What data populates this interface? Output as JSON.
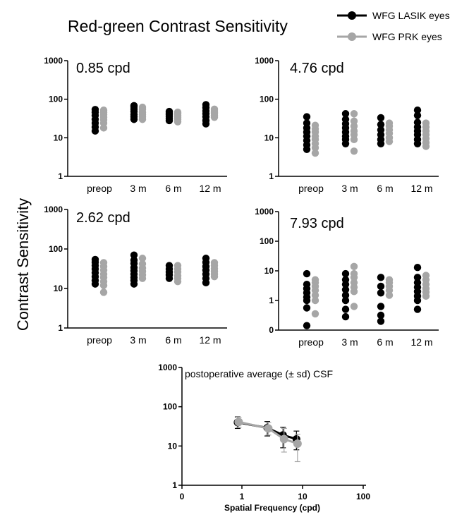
{
  "figure": {
    "title": "Red-green Contrast Sensitivity",
    "y_label": "Contrast Sensitivity"
  },
  "legend": [
    {
      "label": "WFG LASIK eyes",
      "color": "#000000"
    },
    {
      "label": "WFG PRK eyes",
      "color": "#a6a6a6"
    }
  ],
  "colors": {
    "lasik": "#000000",
    "prk": "#a6a6a6",
    "axis": "#000000"
  },
  "chart_data": [
    {
      "type": "scatter",
      "title": "0.85 cpd",
      "categories": [
        "preop",
        "3 m",
        "6 m",
        "12 m"
      ],
      "y_scale": "log",
      "ylim": [
        1,
        1000
      ],
      "y_ticks": [
        "1",
        "10",
        "100",
        "1000"
      ],
      "series": [
        {
          "name": "WFG LASIK eyes",
          "values": [
            [
              15,
              19,
              24,
              30,
              38,
              46,
              54
            ],
            [
              30,
              35,
              40,
              48,
              55,
              63,
              68
            ],
            [
              28,
              32,
              36,
              40,
              44,
              48
            ],
            [
              23,
              28,
              35,
              42,
              50,
              60,
              72
            ]
          ]
        },
        {
          "name": "WFG PRK eyes",
          "values": [
            [
              18,
              24,
              29,
              34,
              40,
              46,
              52
            ],
            [
              30,
              35,
              40,
              46,
              55,
              62
            ],
            [
              26,
              30,
              34,
              38,
              42,
              46
            ],
            [
              34,
              38,
              42,
              46,
              50,
              55
            ]
          ]
        }
      ]
    },
    {
      "type": "scatter",
      "title": "4.76 cpd",
      "categories": [
        "preop",
        "3 m",
        "6 m",
        "12 m"
      ],
      "y_scale": "log",
      "ylim": [
        1,
        1000
      ],
      "y_ticks": [
        "1",
        "10",
        "100",
        "1000"
      ],
      "series": [
        {
          "name": "WFG LASIK eyes",
          "values": [
            [
              5,
              6.5,
              8.5,
              11,
              14,
              18,
              24,
              35
            ],
            [
              7,
              9,
              11,
              14,
              18,
              23,
              30,
              42
            ],
            [
              7,
              9,
              12,
              16,
              22,
              33
            ],
            [
              7,
              9,
              12,
              15,
              19,
              25,
              38,
              52
            ]
          ]
        },
        {
          "name": "WFG PRK eyes",
          "values": [
            [
              4,
              5.5,
              7,
              9,
              11,
              14,
              17,
              21
            ],
            [
              4.5,
              9,
              12,
              15,
              20,
              27,
              42
            ],
            [
              8,
              10,
              13,
              16,
              20,
              24
            ],
            [
              6,
              7.5,
              9.5,
              12,
              15,
              19,
              24
            ]
          ]
        }
      ]
    },
    {
      "type": "scatter",
      "title": "2.62 cpd",
      "categories": [
        "preop",
        "3 m",
        "6 m",
        "12 m"
      ],
      "y_scale": "log",
      "ylim": [
        1,
        1000
      ],
      "y_ticks": [
        "1",
        "10",
        "100",
        "1000"
      ],
      "series": [
        {
          "name": "WFG LASIK eyes",
          "values": [
            [
              13,
              16,
              20,
              25,
              31,
              38,
              46,
              54
            ],
            [
              13,
              16,
              19,
              23,
              28,
              34,
              43,
              52,
              70
            ],
            [
              18,
              22,
              26,
              31,
              38
            ],
            [
              14,
              18,
              23,
              29,
              36,
              46,
              58
            ]
          ]
        },
        {
          "name": "WFG PRK eyes",
          "values": [
            [
              8,
              12,
              15,
              19,
              23,
              29,
              36,
              45
            ],
            [
              18,
              22,
              27,
              33,
              42,
              58
            ],
            [
              15,
              18,
              21,
              26,
              31,
              38
            ],
            [
              20,
              23,
              27,
              32,
              38,
              45
            ]
          ]
        }
      ]
    },
    {
      "type": "scatter",
      "title": "7.93 cpd",
      "categories": [
        "preop",
        "3 m",
        "6 m",
        "12 m"
      ],
      "y_scale": "custom",
      "y_ticks": [
        "0",
        "1",
        "10",
        "100",
        "1000"
      ],
      "series": [
        {
          "name": "WFG LASIK eyes",
          "values": [
            [
              0.15,
              0.75,
              1,
              1.3,
              1.8,
              2.5,
              3.5,
              8
            ],
            [
              0.45,
              0.7,
              1,
              1.5,
              2.3,
              3.5,
              5,
              8
            ],
            [
              0.3,
              0.5,
              0.8,
              1.8,
              3,
              6
            ],
            [
              0.7,
              1,
              1.4,
              2,
              2.8,
              4,
              6,
              13
            ]
          ]
        },
        {
          "name": "WFG PRK eyes",
          "values": [
            [
              0.55,
              1,
              1.5,
              2.2,
              3,
              4,
              5
            ],
            [
              0.8,
              2,
              2.8,
              4,
              6,
              8,
              14
            ],
            [
              1.5,
              2.2,
              3,
              4,
              5
            ],
            [
              1.4,
              1.9,
              2.5,
              3.5,
              5,
              7
            ]
          ]
        }
      ]
    },
    {
      "type": "line",
      "title": "postoperative average (± sd) CSF",
      "xlabel": "Spatial Frequency (cpd)",
      "x_scale": "log",
      "xlim": [
        0,
        100
      ],
      "x_ticks": [
        "0",
        "1",
        "10",
        "100"
      ],
      "y_scale": "log",
      "ylim": [
        1,
        1000
      ],
      "y_ticks": [
        "1",
        "10",
        "100",
        "1000"
      ],
      "x": [
        0.85,
        2.62,
        4.76,
        7.93
      ],
      "series": [
        {
          "name": "WFG LASIK eyes",
          "values": [
            40,
            29,
            19,
            15
          ],
          "sd_low": [
            28,
            18,
            9,
            8
          ],
          "sd_high": [
            55,
            42,
            30,
            24
          ]
        },
        {
          "name": "WFG PRK eyes",
          "values": [
            41,
            28,
            15,
            11.5
          ],
          "sd_low": [
            30,
            19,
            7,
            4
          ],
          "sd_high": [
            54,
            40,
            28,
            20
          ]
        }
      ]
    }
  ]
}
